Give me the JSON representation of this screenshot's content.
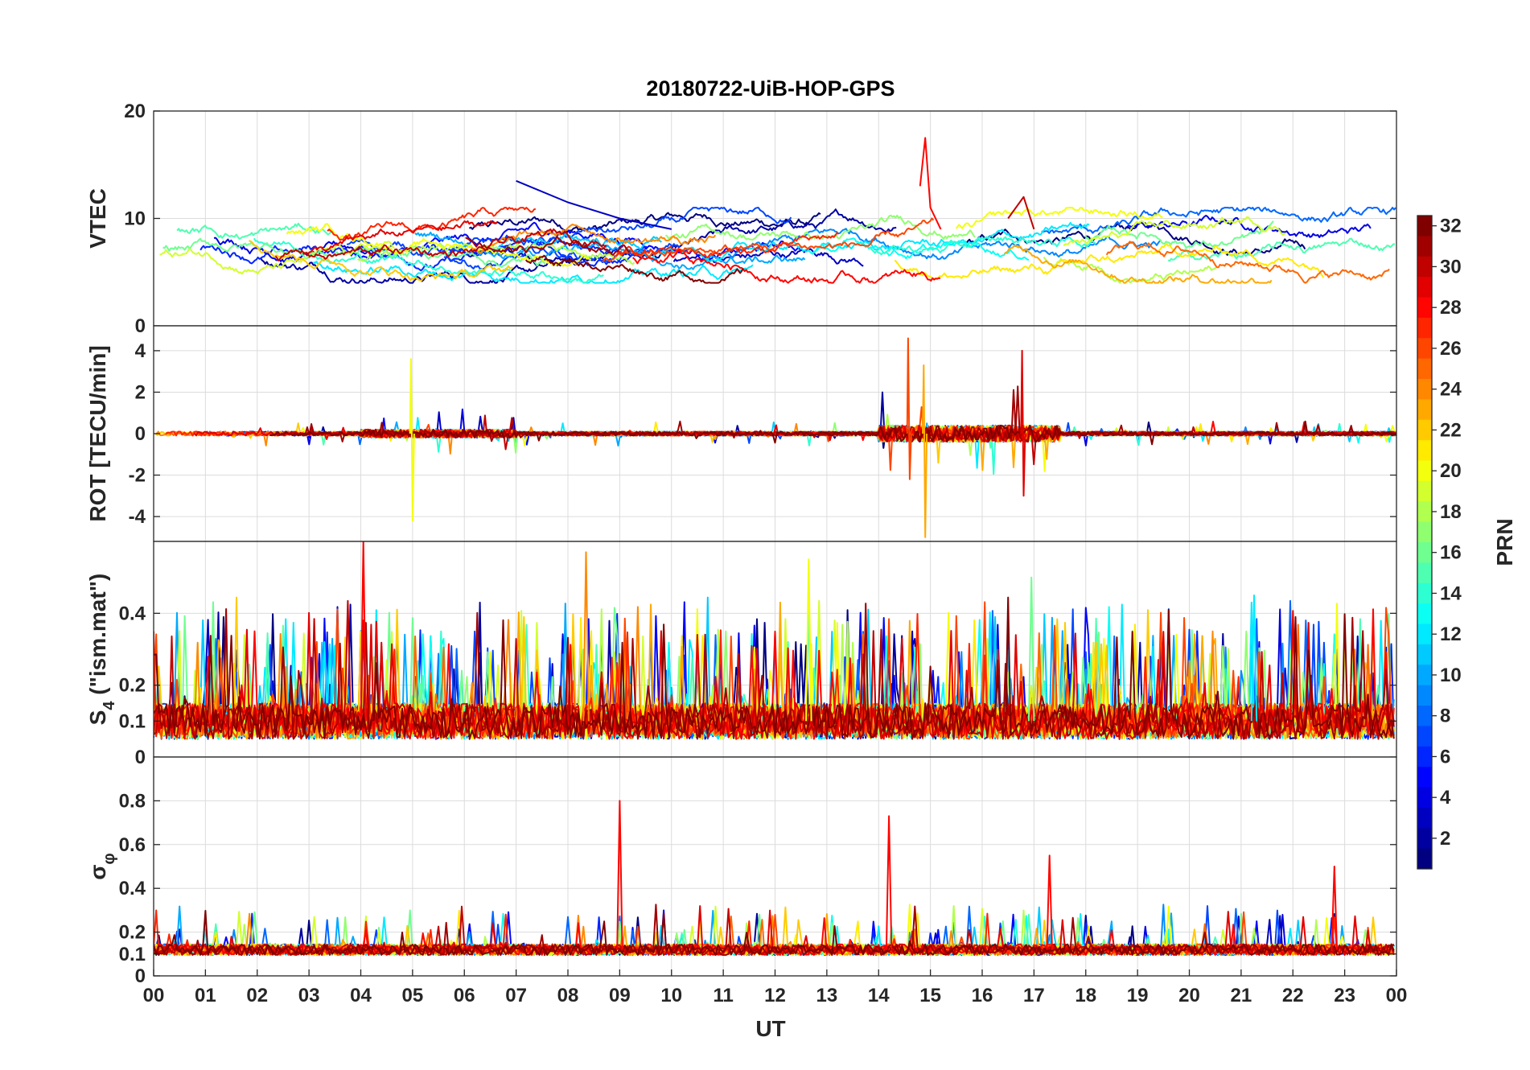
{
  "chart_data": {
    "type": "line",
    "title": "20180722-UiB-HOP-GPS",
    "xlabel": "UT",
    "x_ticks": [
      "00",
      "01",
      "02",
      "03",
      "04",
      "05",
      "06",
      "07",
      "08",
      "09",
      "10",
      "11",
      "12",
      "13",
      "14",
      "15",
      "16",
      "17",
      "18",
      "19",
      "20",
      "21",
      "22",
      "23",
      "00"
    ],
    "xlim": [
      0,
      24
    ],
    "colorbar": {
      "label": "PRN",
      "range": [
        1,
        32
      ],
      "ticks": [
        2,
        4,
        6,
        8,
        10,
        12,
        14,
        16,
        18,
        20,
        22,
        24,
        26,
        28,
        30,
        32
      ],
      "colormap": "jet"
    },
    "panels": [
      {
        "id": "vtec",
        "ylabel": "VTEC",
        "ylim": [
          0,
          20
        ],
        "yticks": [
          0,
          10,
          20
        ],
        "series_summary": [
          {
            "prn": 28,
            "description": "spike",
            "x": [
              14.8,
              14.9,
              15.0,
              15.2
            ],
            "y": [
              13,
              17.5,
              11,
              9
            ]
          },
          {
            "prn": 3,
            "description": "long arc",
            "x": [
              7.0,
              8.0,
              9.0,
              10.0
            ],
            "y": [
              13.5,
              11.5,
              10.0,
              9.0
            ]
          },
          {
            "prn": 30,
            "description": "peak",
            "x": [
              16.5,
              16.8,
              17.0
            ],
            "y": [
              10,
              12,
              9
            ]
          }
        ],
        "baseline_range": [
          4,
          11
        ]
      },
      {
        "id": "rot",
        "ylabel": "ROT [TECU/min]",
        "ylim": [
          -5.2,
          5.2
        ],
        "yticks": [
          -4,
          -2,
          0,
          2,
          4
        ],
        "series_summary": [
          {
            "description": "spike",
            "x": 4.95,
            "y_min": -4.2,
            "y_max": 3.6
          },
          {
            "description": "spike",
            "x": 14.85,
            "y_min": -5.0,
            "y_max": 3.3
          },
          {
            "description": "spike",
            "x": 14.55,
            "y_min": -2.2,
            "y_max": 4.6
          },
          {
            "description": "spike",
            "x": 16.75,
            "y_min": -3.0,
            "y_max": 4.0
          }
        ]
      },
      {
        "id": "s4",
        "ylabel": "S4 (\"ism.mat\")",
        "ylabel_main": "S",
        "ylabel_sub": "4",
        "ylabel_rest": " (\"ism.mat\")",
        "ylim": [
          0,
          0.6
        ],
        "yticks": [
          0,
          0.1,
          0.2,
          0.4
        ],
        "baseline_range": [
          0.05,
          0.15
        ],
        "peak_values": [
          0.6,
          0.57,
          0.55,
          0.5,
          0.45
        ]
      },
      {
        "id": "sigma_phi",
        "ylabel": "σ φ",
        "ylabel_main": "σ",
        "ylabel_sub": "φ",
        "ylim": [
          0,
          1.0
        ],
        "yticks": [
          0,
          0.1,
          0.2,
          0.4,
          0.6,
          0.8
        ],
        "baseline": 0.12,
        "series_summary": [
          {
            "description": "peak",
            "x": 9.0,
            "y": 0.8
          },
          {
            "description": "peak",
            "x": 14.2,
            "y": 0.73
          },
          {
            "description": "peak",
            "x": 17.3,
            "y": 0.55
          },
          {
            "description": "peak",
            "x": 22.8,
            "y": 0.5
          }
        ]
      }
    ]
  }
}
